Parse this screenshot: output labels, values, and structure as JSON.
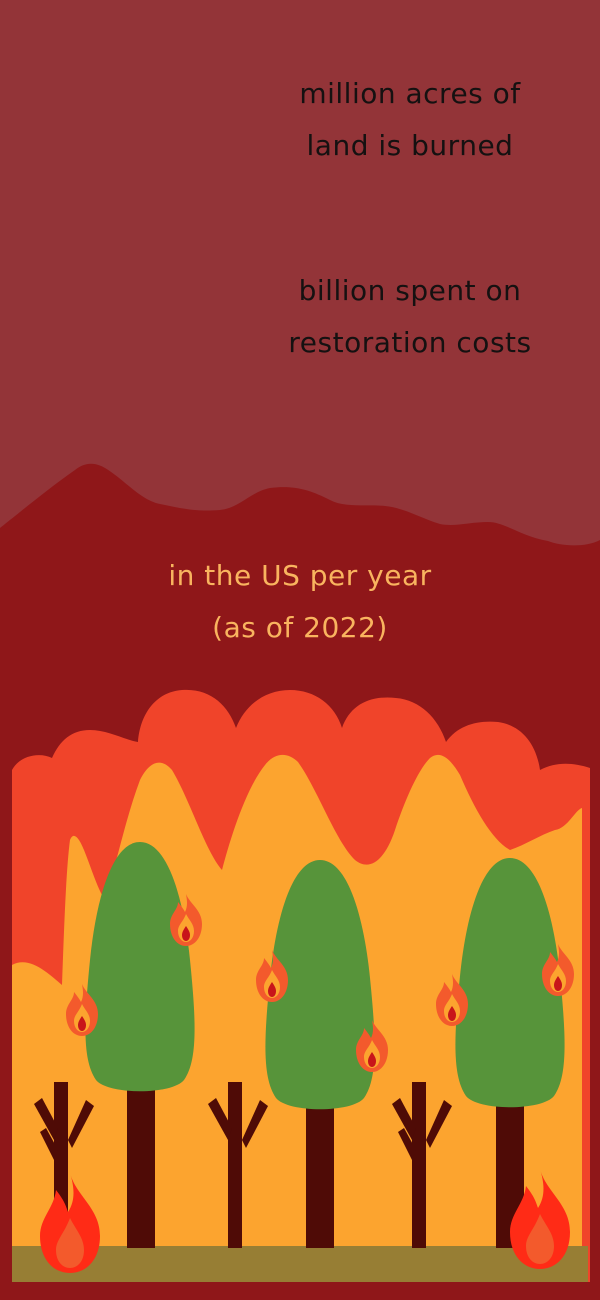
{
  "stats": [
    {
      "line1": "million acres of",
      "line2": "land is burned"
    },
    {
      "line1": "billion spent on",
      "line2": "restoration costs"
    }
  ],
  "caption": {
    "line1": "in the US per year",
    "line2": "(as of 2022)"
  },
  "colors": {
    "top_band": "#933438",
    "background": "#8f1719",
    "flame_outer": "#f0442a",
    "flame_inner": "#fca42f",
    "tree_foliage": "#57943a",
    "trunk": "#4f0b06",
    "ground": "#977e34",
    "fire_red": "#ff2b16",
    "fire_orange": "#f35a2c",
    "stat_text": "#151111",
    "caption_text": "#f9b45f"
  },
  "icons": [
    "tree-icon",
    "dead-tree-icon",
    "flame-icon"
  ]
}
